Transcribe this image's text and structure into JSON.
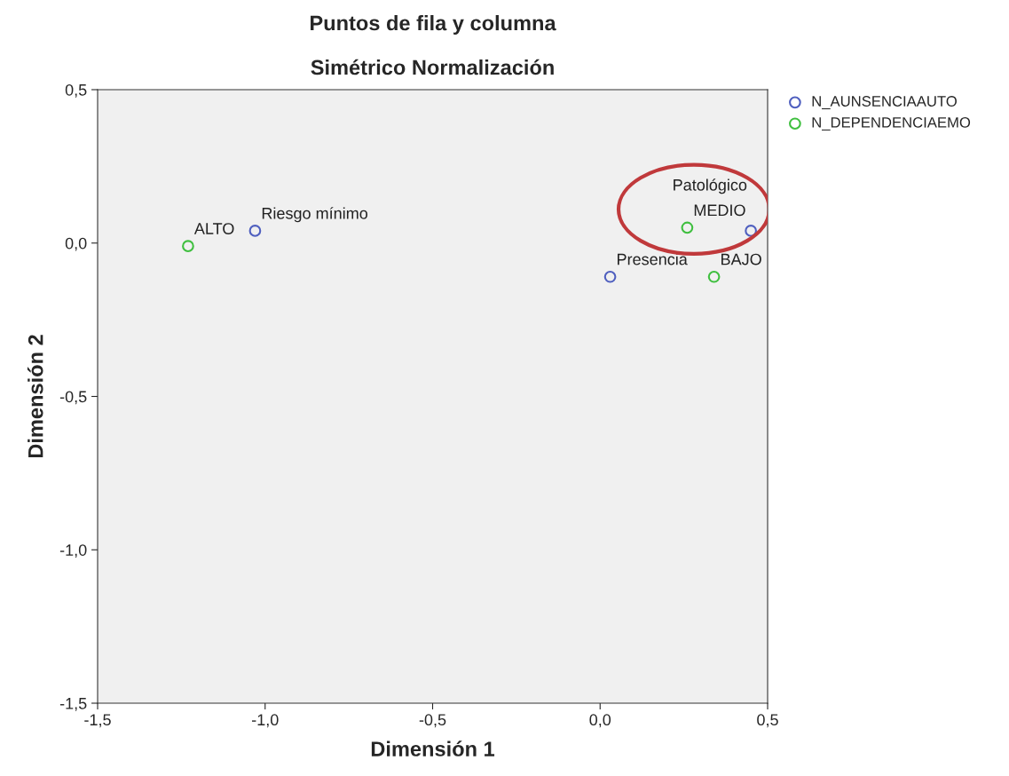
{
  "chart_data": {
    "type": "scatter",
    "title": "Puntos de fila y columna",
    "subtitle": "Simétrico Normalización",
    "xlabel": "Dimensión 1",
    "ylabel": "Dimensión 2",
    "xlim": [
      -1.5,
      0.5
    ],
    "xticks": [
      {
        "value": -1.5,
        "label": "-1,5"
      },
      {
        "value": -1.0,
        "label": "-1,0"
      },
      {
        "value": -0.5,
        "label": "-0,5"
      },
      {
        "value": 0.0,
        "label": "0,0"
      },
      {
        "value": 0.5,
        "label": "0,5"
      }
    ],
    "ylim": [
      -1.5,
      0.5
    ],
    "yticks": [
      {
        "value": -1.5,
        "label": "-1,5"
      },
      {
        "value": -1.0,
        "label": "-1,0"
      },
      {
        "value": -0.5,
        "label": "-0,5"
      },
      {
        "value": 0.0,
        "label": "0,0"
      },
      {
        "value": 0.5,
        "label": "0,5"
      }
    ],
    "series": [
      {
        "name": "N_AUNSENCIAAUTO",
        "color": "#4f5fbf",
        "x": [
          -1.03,
          0.03,
          0.45
        ],
        "values": [
          0.04,
          -0.11,
          0.04
        ]
      },
      {
        "name": "N_DEPENDENCIAEMO",
        "color": "#3fbf3f",
        "x": [
          -1.23,
          0.26,
          0.34
        ],
        "values": [
          -0.01,
          0.05,
          -0.11
        ]
      }
    ],
    "annotations": [
      {
        "text": "Riesgo mínimo",
        "x": -1.03,
        "y": 0.04
      },
      {
        "text": "Presencia",
        "x": 0.03,
        "y": -0.11
      },
      {
        "text": "Patológico",
        "x": 0.45,
        "y": 0.04
      },
      {
        "text": "ALTO",
        "x": -1.23,
        "y": -0.01
      },
      {
        "text": "MEDIO",
        "x": 0.26,
        "y": 0.05
      },
      {
        "text": "BAJO",
        "x": 0.34,
        "y": -0.11
      }
    ],
    "marker": "circle",
    "grid": false,
    "legend": "top right"
  }
}
